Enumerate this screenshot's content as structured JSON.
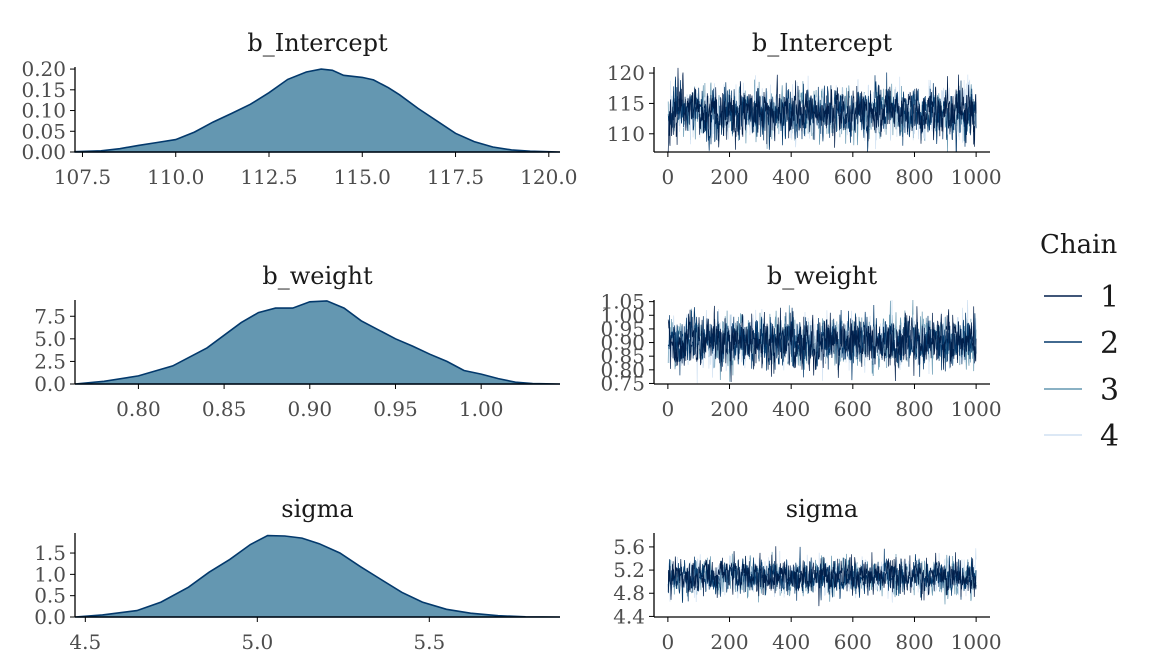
{
  "chart_data": [
    {
      "type": "area",
      "title": "b_Intercept",
      "x_ticks": [
        "107.5",
        "110.0",
        "112.5",
        "115.0",
        "117.5",
        "120.0"
      ],
      "y_ticks": [
        "0.00",
        "0.05",
        "0.10",
        "0.15",
        "0.20"
      ],
      "xlim": [
        107.3,
        120.3
      ],
      "ylim": [
        0,
        0.205
      ],
      "x": [
        107.3,
        108.0,
        108.5,
        109.0,
        109.5,
        110.0,
        110.5,
        111.0,
        111.5,
        112.0,
        112.5,
        113.0,
        113.5,
        113.9,
        114.2,
        114.5,
        115.0,
        115.3,
        115.7,
        116.0,
        116.5,
        117.0,
        117.5,
        118.0,
        118.5,
        119.0,
        119.5,
        120.3
      ],
      "y": [
        0.001,
        0.003,
        0.008,
        0.016,
        0.023,
        0.03,
        0.048,
        0.072,
        0.093,
        0.115,
        0.143,
        0.175,
        0.193,
        0.2,
        0.197,
        0.185,
        0.18,
        0.174,
        0.155,
        0.138,
        0.105,
        0.075,
        0.045,
        0.025,
        0.012,
        0.005,
        0.002,
        0.0
      ]
    },
    {
      "type": "line",
      "title": "b_Intercept",
      "x_ticks": [
        "0",
        "200",
        "400",
        "600",
        "800",
        "1000"
      ],
      "y_ticks": [
        "110",
        "115",
        "120"
      ],
      "xlim": [
        -45,
        1045
      ],
      "ylim": [
        107,
        121
      ],
      "mean": 113.5,
      "sd": 1.95
    },
    {
      "type": "area",
      "title": "b_weight",
      "x_ticks": [
        "0.80",
        "0.85",
        "0.90",
        "0.95",
        "1.00"
      ],
      "y_ticks": [
        "0.0",
        "2.5",
        "5.0",
        "7.5"
      ],
      "xlim": [
        0.763,
        1.046
      ],
      "ylim": [
        0,
        9.3
      ],
      "x": [
        0.763,
        0.78,
        0.8,
        0.82,
        0.84,
        0.86,
        0.87,
        0.88,
        0.89,
        0.9,
        0.91,
        0.92,
        0.93,
        0.94,
        0.95,
        0.96,
        0.97,
        0.98,
        0.99,
        1.0,
        1.01,
        1.02,
        1.03,
        1.046
      ],
      "y": [
        0.0,
        0.3,
        0.9,
        2.0,
        4.0,
        6.8,
        7.9,
        8.4,
        8.4,
        9.1,
        9.2,
        8.4,
        7.0,
        6.0,
        5.0,
        4.2,
        3.3,
        2.5,
        1.5,
        1.1,
        0.6,
        0.2,
        0.05,
        0.0
      ]
    },
    {
      "type": "line",
      "title": "b_weight",
      "x_ticks": [
        "0",
        "200",
        "400",
        "600",
        "800",
        "1000"
      ],
      "y_ticks": [
        "0.75",
        "0.80",
        "0.85",
        "0.90",
        "0.95",
        "1.00",
        "1.05"
      ],
      "xlim": [
        -45,
        1045
      ],
      "ylim": [
        0.748,
        1.056
      ],
      "mean": 0.905,
      "sd": 0.042
    },
    {
      "type": "area",
      "title": "sigma",
      "x_ticks": [
        "4.5",
        "5.0",
        "5.5"
      ],
      "y_ticks": [
        "0.0",
        "0.5",
        "1.0",
        "1.5"
      ],
      "xlim": [
        4.47,
        5.88
      ],
      "ylim": [
        0,
        1.97
      ],
      "x": [
        4.47,
        4.55,
        4.65,
        4.72,
        4.8,
        4.86,
        4.92,
        4.98,
        5.03,
        5.08,
        5.13,
        5.18,
        5.24,
        5.3,
        5.36,
        5.42,
        5.48,
        5.55,
        5.62,
        5.7,
        5.78,
        5.88
      ],
      "y": [
        0.0,
        0.05,
        0.15,
        0.35,
        0.7,
        1.05,
        1.35,
        1.7,
        1.91,
        1.9,
        1.85,
        1.72,
        1.5,
        1.18,
        0.88,
        0.58,
        0.35,
        0.18,
        0.09,
        0.03,
        0.005,
        0.0
      ]
    },
    {
      "type": "line",
      "title": "sigma",
      "x_ticks": [
        "0",
        "200",
        "400",
        "600",
        "800",
        "1000"
      ],
      "y_ticks": [
        "4.4",
        "4.8",
        "5.2",
        "5.6"
      ],
      "xlim": [
        -45,
        1045
      ],
      "ylim": [
        4.39,
        5.84
      ],
      "mean": 5.08,
      "sd": 0.14
    }
  ],
  "legend": {
    "title": "Chain",
    "placement": "right",
    "items": [
      {
        "label": "1",
        "color": "#011f4b"
      },
      {
        "label": "2",
        "color": "#03396c"
      },
      {
        "label": "3",
        "color": "#6497b1"
      },
      {
        "label": "4",
        "color": "#d0e1f2"
      }
    ]
  },
  "colors": {
    "density_fill": "#6497b1",
    "density_line": "#03396c",
    "axis": "#000000"
  }
}
